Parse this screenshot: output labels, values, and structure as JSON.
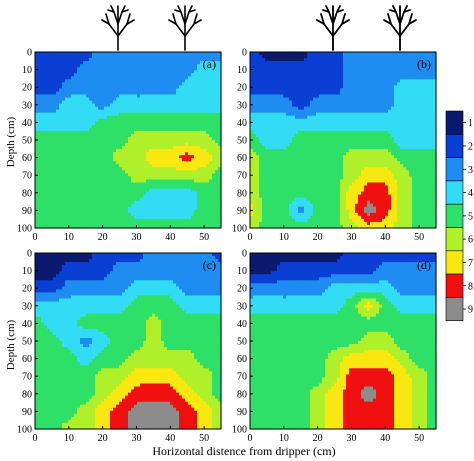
{
  "chart_data": [
    {
      "type": "heatmap",
      "panel_label": "(a)",
      "trees_shown": 2,
      "x": [
        0,
        5,
        10,
        15,
        20,
        25,
        30,
        35,
        40,
        45,
        50,
        55
      ],
      "y": [
        0,
        10,
        20,
        30,
        40,
        50,
        60,
        70,
        80,
        90,
        100
      ],
      "z": [
        [
          2,
          2,
          2,
          2,
          3,
          3,
          3,
          3,
          3,
          3,
          3,
          3
        ],
        [
          2,
          2,
          2,
          3,
          3,
          3,
          3,
          3,
          3,
          3,
          4,
          4
        ],
        [
          2,
          2,
          3,
          3,
          3,
          3,
          3,
          3,
          3,
          4,
          4,
          4
        ],
        [
          3,
          3,
          4,
          4,
          3,
          4,
          4,
          4,
          4,
          4,
          4,
          4
        ],
        [
          4,
          4,
          4,
          4,
          5,
          5,
          5,
          5,
          5,
          5,
          5,
          5
        ],
        [
          5,
          5,
          5,
          5,
          5,
          5,
          6,
          6,
          6,
          6,
          6,
          5
        ],
        [
          5,
          5,
          5,
          5,
          5,
          6,
          6,
          7,
          7,
          8,
          7,
          6
        ],
        [
          5,
          5,
          5,
          5,
          5,
          5,
          6,
          6,
          6,
          6,
          6,
          5
        ],
        [
          5,
          5,
          5,
          5,
          5,
          5,
          5,
          4,
          4,
          4,
          5,
          5
        ],
        [
          5,
          5,
          5,
          5,
          5,
          5,
          4,
          4,
          4,
          4,
          5,
          5
        ],
        [
          5,
          5,
          5,
          5,
          5,
          5,
          5,
          5,
          5,
          5,
          5,
          5
        ]
      ]
    },
    {
      "type": "heatmap",
      "panel_label": "(b)",
      "trees_shown": 2,
      "x": [
        0,
        5,
        10,
        15,
        20,
        25,
        30,
        35,
        40,
        45,
        50,
        55
      ],
      "y": [
        0,
        10,
        20,
        30,
        40,
        50,
        60,
        70,
        80,
        90,
        100
      ],
      "z": [
        [
          2,
          1,
          1,
          1,
          2,
          2,
          3,
          3,
          3,
          3,
          3,
          3
        ],
        [
          2,
          2,
          2,
          2,
          2,
          2,
          3,
          3,
          3,
          3,
          3,
          3
        ],
        [
          2,
          2,
          2,
          2,
          2,
          2,
          3,
          3,
          3,
          4,
          4,
          4
        ],
        [
          3,
          3,
          3,
          2,
          3,
          3,
          3,
          3,
          3,
          4,
          4,
          4
        ],
        [
          4,
          4,
          4,
          4,
          4,
          4,
          4,
          4,
          4,
          4,
          4,
          4
        ],
        [
          5,
          4,
          4,
          5,
          5,
          5,
          5,
          5,
          5,
          4,
          4,
          4
        ],
        [
          6,
          5,
          5,
          5,
          5,
          5,
          6,
          6,
          6,
          5,
          5,
          5
        ],
        [
          6,
          5,
          5,
          5,
          5,
          5,
          6,
          7,
          7,
          6,
          5,
          5
        ],
        [
          6,
          5,
          5,
          5,
          5,
          5,
          7,
          8,
          8,
          6,
          5,
          5
        ],
        [
          7,
          5,
          5,
          3,
          5,
          5,
          7,
          9,
          8,
          6,
          5,
          5
        ],
        [
          6,
          5,
          5,
          5,
          5,
          5,
          6,
          7,
          7,
          6,
          5,
          5
        ]
      ]
    },
    {
      "type": "heatmap",
      "panel_label": "(c)",
      "trees_shown": 0,
      "x": [
        0,
        5,
        10,
        15,
        20,
        25,
        30,
        35,
        40,
        45,
        50,
        55
      ],
      "y": [
        0,
        10,
        20,
        30,
        40,
        50,
        60,
        70,
        80,
        90,
        100
      ],
      "z": [
        [
          1,
          1,
          1,
          1,
          2,
          2,
          2,
          3,
          3,
          3,
          3,
          2
        ],
        [
          1,
          1,
          2,
          2,
          2,
          3,
          3,
          3,
          3,
          3,
          3,
          3
        ],
        [
          2,
          2,
          3,
          3,
          3,
          3,
          4,
          4,
          4,
          3,
          3,
          3
        ],
        [
          4,
          4,
          4,
          4,
          4,
          4,
          5,
          5,
          5,
          4,
          4,
          4
        ],
        [
          5,
          4,
          4,
          5,
          5,
          5,
          5,
          6,
          5,
          5,
          5,
          5
        ],
        [
          5,
          5,
          4,
          3,
          4,
          5,
          5,
          6,
          5,
          5,
          5,
          5
        ],
        [
          5,
          5,
          5,
          4,
          5,
          5,
          6,
          6,
          6,
          6,
          5,
          5
        ],
        [
          5,
          5,
          5,
          5,
          6,
          6,
          7,
          7,
          7,
          6,
          6,
          5
        ],
        [
          5,
          5,
          5,
          5,
          6,
          7,
          8,
          8,
          8,
          7,
          6,
          5
        ],
        [
          5,
          5,
          5,
          6,
          7,
          8,
          9,
          9,
          9,
          8,
          7,
          6
        ],
        [
          5,
          5,
          6,
          6,
          7,
          8,
          9,
          9,
          9,
          8,
          7,
          6
        ]
      ]
    },
    {
      "type": "heatmap",
      "panel_label": "(d)",
      "trees_shown": 2,
      "x": [
        0,
        5,
        10,
        15,
        20,
        25,
        30,
        35,
        40,
        45,
        50,
        55
      ],
      "y": [
        0,
        10,
        20,
        30,
        40,
        50,
        60,
        70,
        80,
        90,
        100
      ],
      "z": [
        [
          1,
          1,
          1,
          1,
          1,
          1,
          2,
          2,
          2,
          2,
          2,
          2
        ],
        [
          1,
          1,
          2,
          2,
          2,
          2,
          2,
          2,
          3,
          3,
          3,
          3
        ],
        [
          3,
          3,
          3,
          3,
          3,
          4,
          4,
          4,
          4,
          3,
          3,
          3
        ],
        [
          4,
          4,
          4,
          4,
          4,
          4,
          5,
          7,
          5,
          4,
          4,
          4
        ],
        [
          5,
          5,
          5,
          5,
          5,
          5,
          5,
          5,
          5,
          5,
          5,
          5
        ],
        [
          5,
          5,
          5,
          5,
          5,
          5,
          5,
          6,
          6,
          5,
          5,
          5
        ],
        [
          5,
          5,
          5,
          5,
          5,
          6,
          7,
          7,
          7,
          6,
          5,
          5
        ],
        [
          5,
          5,
          5,
          5,
          5,
          6,
          8,
          8,
          8,
          7,
          6,
          5
        ],
        [
          5,
          5,
          5,
          5,
          6,
          7,
          8,
          9,
          8,
          7,
          6,
          5
        ],
        [
          5,
          5,
          5,
          5,
          6,
          7,
          8,
          8,
          8,
          7,
          6,
          5
        ],
        [
          5,
          5,
          5,
          5,
          6,
          7,
          8,
          8,
          8,
          7,
          6,
          5
        ]
      ]
    }
  ],
  "axes": {
    "xlabel": "Horizontal distence from dripper (cm)",
    "ylabel": "Depth (cm)",
    "xlim": [
      0,
      55
    ],
    "ylim": [
      0,
      100
    ],
    "x_ticks": [
      "0",
      "10",
      "20",
      "30",
      "40",
      "50"
    ],
    "y_ticks": [
      "0",
      "10",
      "20",
      "30",
      "40",
      "50",
      "60",
      "70",
      "80",
      "90",
      "100"
    ]
  },
  "legend": {
    "labels": [
      "1",
      "2",
      "3",
      "4",
      "5",
      "6",
      "7",
      "8",
      "9"
    ],
    "colors": [
      "#0b1a6e",
      "#0a3fd4",
      "#1e8cf0",
      "#33dcf5",
      "#2ee068",
      "#b0f02a",
      "#f8e810",
      "#f01010",
      "#8c8c8c"
    ]
  },
  "tree_color": "#000000"
}
